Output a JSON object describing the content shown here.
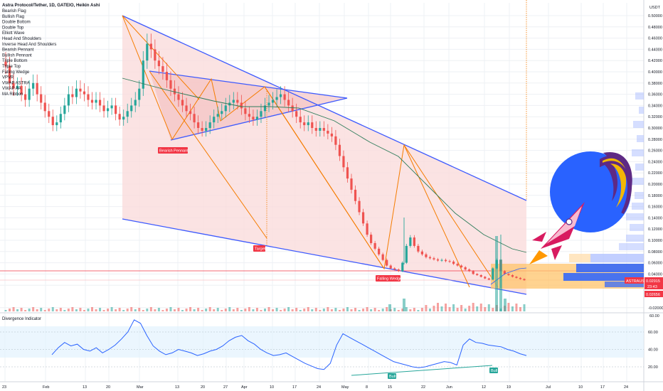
{
  "chart_data": {
    "type": "candlestick",
    "title": "Astra Protocol/Tether, 1D, GATEIO, Heikin Ashi",
    "currency": "USDT",
    "symbol_tag": "ASTRAUSDT",
    "price_tag": "0.02915",
    "countdown_tag": "23:43",
    "low_tag": "0.02656",
    "yaxis": {
      "ticks": [
        "0.50000",
        "0.48000",
        "0.46000",
        "0.44000",
        "0.42000",
        "0.40000",
        "0.38000",
        "0.36000",
        "0.34000",
        "0.32000",
        "0.30000",
        "0.28000",
        "0.26000",
        "0.24000",
        "0.22000",
        "0.20000",
        "0.18000",
        "0.16000",
        "0.14000",
        "0.12000",
        "0.10000",
        "0.08000",
        "0.06000",
        "0.04000",
        "0.02000",
        "-0.02000"
      ],
      "range": [
        -0.02,
        0.5
      ]
    },
    "xaxis": {
      "labels": [
        "23",
        "Feb",
        "13",
        "20",
        "Mar",
        "13",
        "20",
        "27",
        "Apr",
        "10",
        "17",
        "24",
        "May",
        "8",
        "15",
        "22",
        "Jun",
        "12",
        "19",
        "Jul",
        "10",
        "17",
        "24"
      ]
    },
    "indicators": [
      "Bearish Flag",
      "Bullish Flag",
      "Double Bottom",
      "Double Top",
      "Elliott Wave",
      "Head And Shoulders",
      "Inverse Head And Shoulders",
      "Bearish Pennant",
      "Bullish Pennant",
      "Triple Bottom",
      "Triple Top",
      "Falling Wedge",
      "VPVR",
      "VWAP ASTRA",
      "VWAP AA",
      "MA Ribbon"
    ],
    "pattern_labels": [
      "Bearish Pennant",
      "Target",
      "Falling Wedge"
    ],
    "close_series": [
      0.41,
      0.38,
      0.37,
      0.375,
      0.36,
      0.35,
      0.37,
      0.38,
      0.36,
      0.345,
      0.33,
      0.32,
      0.305,
      0.31,
      0.325,
      0.34,
      0.36,
      0.355,
      0.37,
      0.365,
      0.36,
      0.35,
      0.345,
      0.35,
      0.34,
      0.33,
      0.335,
      0.34,
      0.325,
      0.315,
      0.32,
      0.33,
      0.34,
      0.35,
      0.37,
      0.42,
      0.45,
      0.44,
      0.42,
      0.41,
      0.4,
      0.385,
      0.37,
      0.36,
      0.35,
      0.34,
      0.33,
      0.325,
      0.31,
      0.3,
      0.295,
      0.3,
      0.31,
      0.32,
      0.325,
      0.33,
      0.34,
      0.345,
      0.35,
      0.345,
      0.335,
      0.325,
      0.32,
      0.315,
      0.32,
      0.33,
      0.34,
      0.345,
      0.35,
      0.355,
      0.36,
      0.35,
      0.34,
      0.33,
      0.32,
      0.31,
      0.305,
      0.31,
      0.3,
      0.295,
      0.3,
      0.295,
      0.29,
      0.285,
      0.27,
      0.25,
      0.23,
      0.21,
      0.19,
      0.17,
      0.15,
      0.13,
      0.11,
      0.095,
      0.085,
      0.075,
      0.065,
      0.055,
      0.05,
      0.048,
      0.045,
      0.06,
      0.09,
      0.105,
      0.09,
      0.08,
      0.075,
      0.07,
      0.068,
      0.066,
      0.064,
      0.065,
      0.063,
      0.062,
      0.058,
      0.055,
      0.052,
      0.048,
      0.045,
      0.04,
      0.038,
      0.035,
      0.032,
      0.03,
      0.05,
      0.065,
      0.045,
      0.04,
      0.038,
      0.035,
      0.033,
      0.031,
      0.029
    ],
    "divergence": {
      "title": "Divergence Indicator",
      "ticks": [
        "60.00",
        "40.00",
        "20.00"
      ],
      "range": [
        15,
        80
      ],
      "values": [
        34,
        42,
        48,
        44,
        46,
        40,
        38,
        42,
        36,
        40,
        45,
        52,
        60,
        74,
        70,
        56,
        44,
        38,
        34,
        36,
        40,
        38,
        36,
        33,
        35,
        38,
        40,
        44,
        50,
        54,
        56,
        50,
        46,
        40,
        36,
        33,
        34,
        36,
        32,
        28,
        24,
        21,
        18,
        17,
        24,
        45,
        58,
        54,
        50,
        46,
        42,
        38,
        34,
        30,
        26,
        24,
        22,
        20,
        19,
        20,
        22,
        24,
        26,
        25,
        22,
        45,
        52,
        48,
        47,
        45,
        44,
        43,
        40,
        38,
        35,
        33
      ],
      "labels": [
        "Bull",
        "Bull"
      ]
    },
    "colors": {
      "up": "#26a69a",
      "down": "#ef5350",
      "trend": "#3d5afe",
      "zigzag": "#f57c00",
      "ma": "#2e7d5b",
      "fill": "#fadcdc",
      "bull": "#26a69a"
    }
  },
  "legend": {
    "title_line": "Astra Protocol/Tether, 1D, GATEIO, Heikin Ashi"
  }
}
